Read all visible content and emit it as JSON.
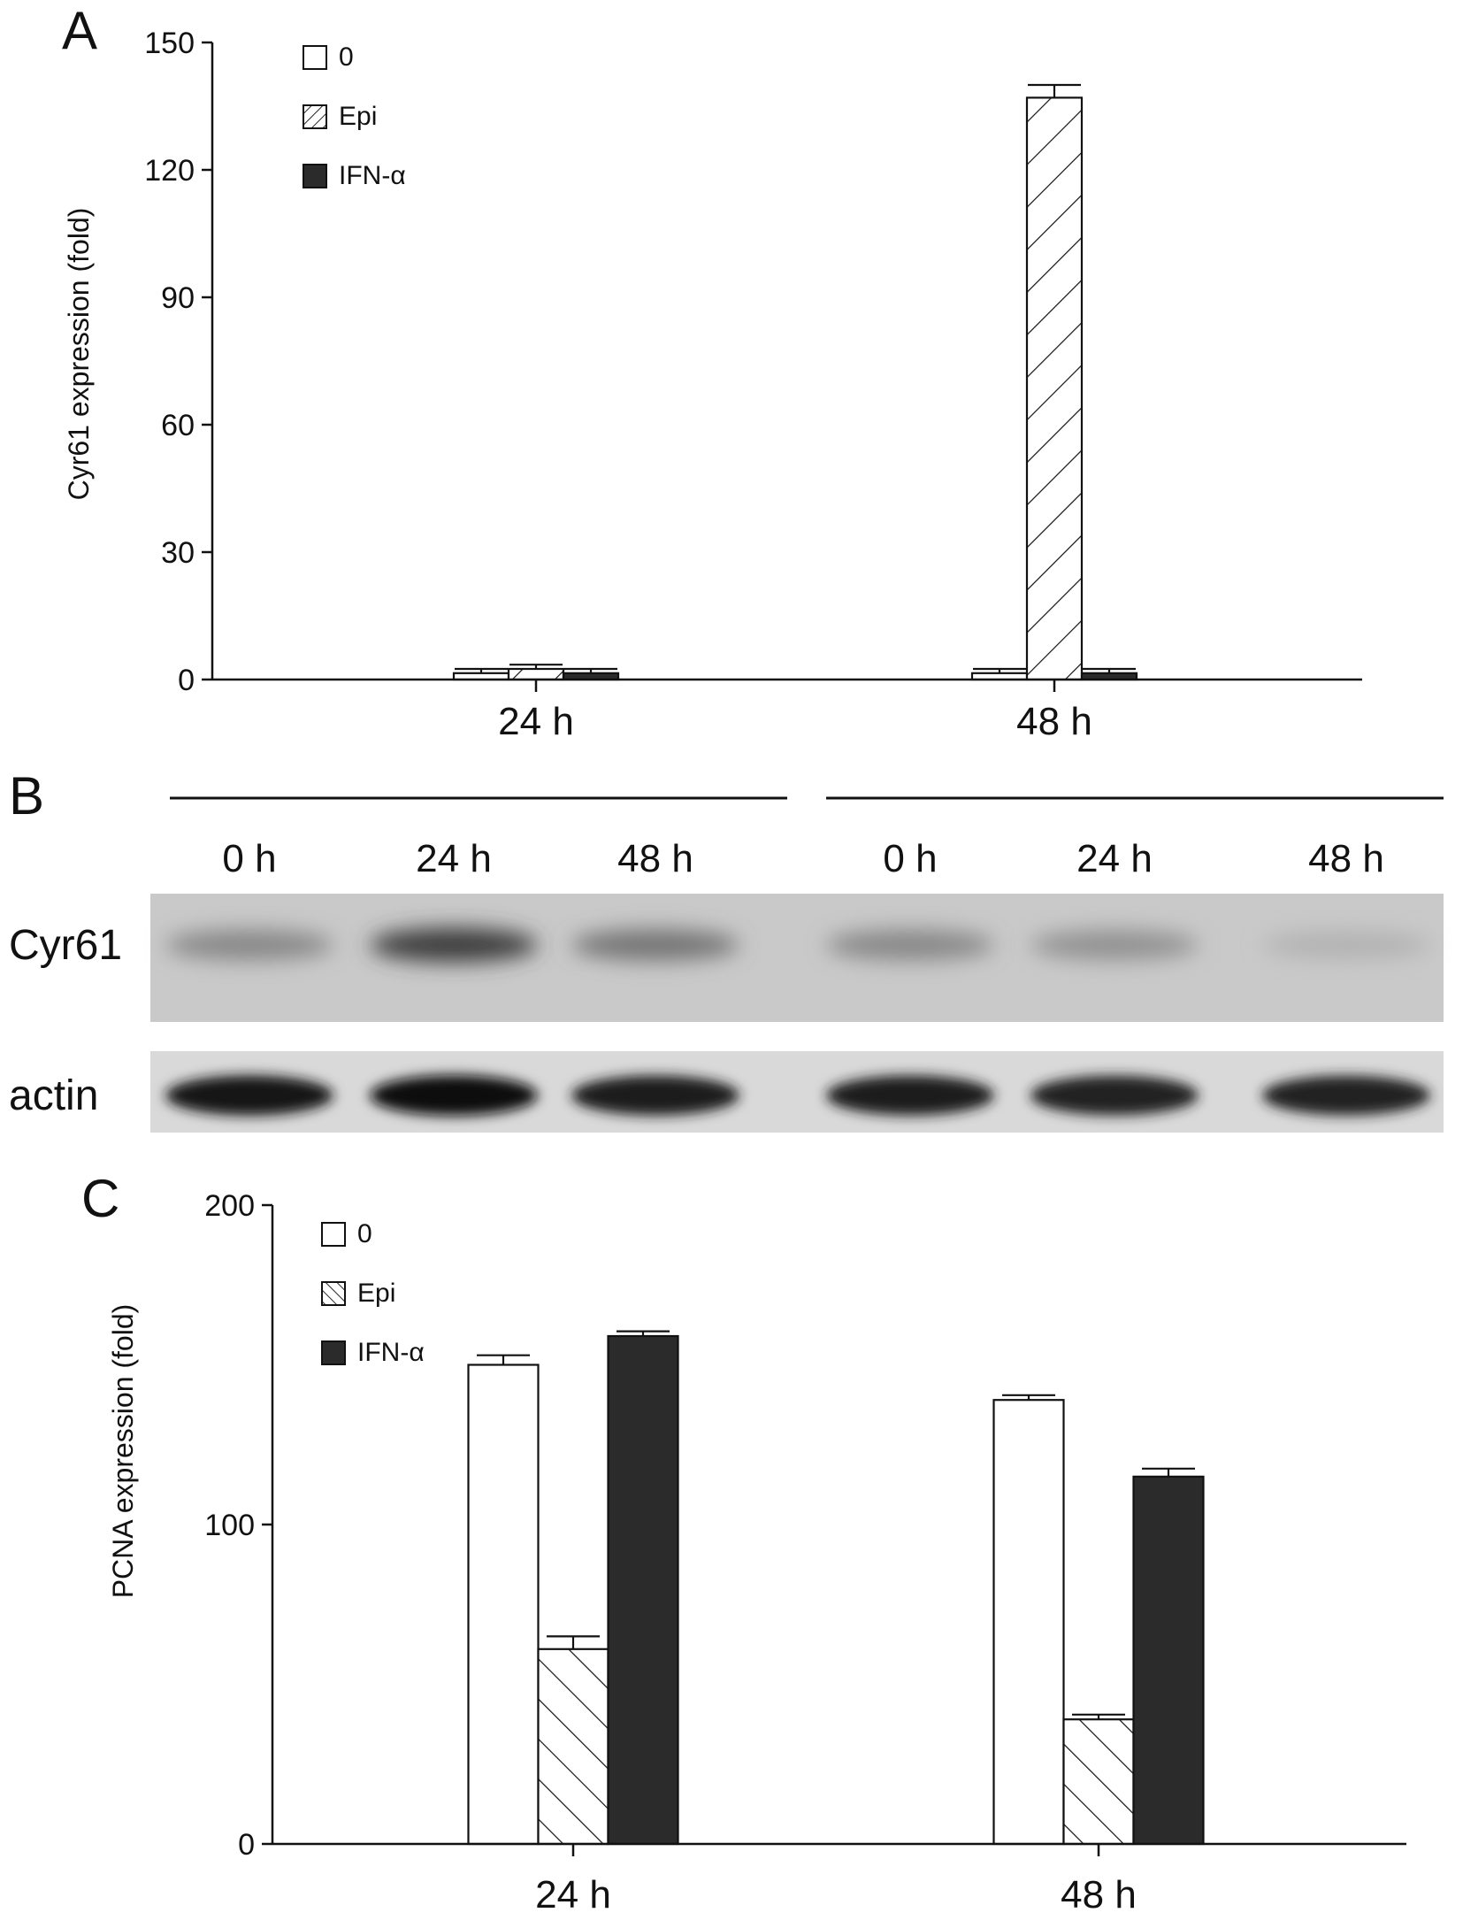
{
  "chart_data": [
    {
      "panel": "A",
      "type": "bar",
      "categories": [
        "24 h",
        "48 h"
      ],
      "ylabel": "Cyr61 expression (fold)",
      "ylim": [
        0,
        150
      ],
      "yticks": [
        0,
        30,
        60,
        90,
        120,
        150
      ],
      "grid": false,
      "legend_position": "top-left",
      "series": [
        {
          "name": "0",
          "values": [
            1.5,
            1.5
          ],
          "errors": [
            1,
            1
          ],
          "fill": "white",
          "color": "#ffffff"
        },
        {
          "name": "Epi",
          "values": [
            2.5,
            137
          ],
          "errors": [
            1,
            3
          ],
          "fill": "hatch-backslash",
          "color": "#ffffff"
        },
        {
          "name": "IFN-α",
          "values": [
            1.5,
            1.5
          ],
          "errors": [
            1,
            1
          ],
          "fill": "solid",
          "color": "#2b2b2b"
        }
      ]
    },
    {
      "panel": "C",
      "type": "bar",
      "categories": [
        "24 h",
        "48 h"
      ],
      "ylabel": "PCNA expression (fold)",
      "ylim": [
        0,
        200
      ],
      "yticks": [
        0,
        100,
        200
      ],
      "grid": false,
      "legend_position": "top-left",
      "series": [
        {
          "name": "0",
          "values": [
            150,
            139
          ],
          "errors": [
            3,
            1.5
          ],
          "fill": "white",
          "color": "#ffffff"
        },
        {
          "name": "Epi",
          "values": [
            61,
            39
          ],
          "errors": [
            4,
            1.5
          ],
          "fill": "hatch-slash",
          "color": "#ffffff"
        },
        {
          "name": "IFN-α",
          "values": [
            159,
            115
          ],
          "errors": [
            1.5,
            2.5
          ],
          "fill": "solid",
          "color": "#2b2b2b"
        }
      ]
    }
  ],
  "blot": {
    "panel": "B",
    "lanes": [
      "0 h",
      "24 h",
      "48 h",
      "0 h",
      "24 h",
      "48 h"
    ],
    "rows": [
      {
        "label": "Cyr61",
        "intensities": [
          0.35,
          0.75,
          0.45,
          0.35,
          0.3,
          0.12
        ]
      },
      {
        "label": "actin",
        "intensities": [
          0.95,
          1.0,
          0.92,
          0.92,
          0.9,
          0.9
        ]
      }
    ]
  },
  "panels": {
    "a": "A",
    "b": "B",
    "c": "C"
  }
}
